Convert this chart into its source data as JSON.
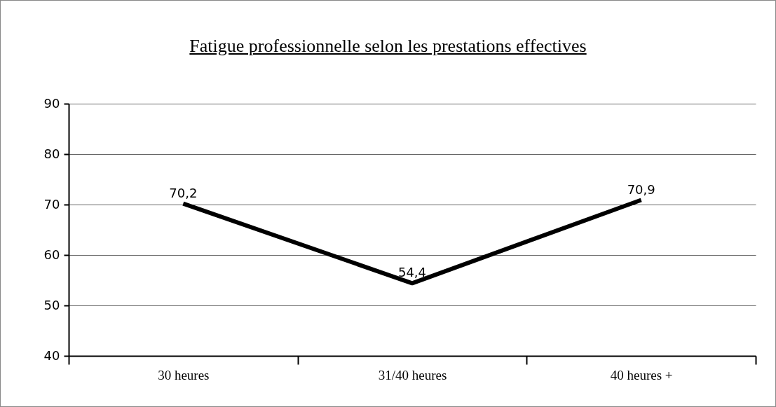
{
  "chart_data": {
    "type": "line",
    "title": "Fatigue professionnelle selon les prestations effectives",
    "categories": [
      "30 heures",
      "31/40 heures",
      "40 heures +"
    ],
    "values": [
      70.2,
      54.4,
      70.9
    ],
    "value_labels": [
      "70,2",
      "54,4",
      "70,9"
    ],
    "color": "#000000",
    "ylim": [
      40,
      90
    ],
    "yticks": [
      40,
      50,
      60,
      70,
      80,
      90
    ],
    "grid": "y"
  }
}
